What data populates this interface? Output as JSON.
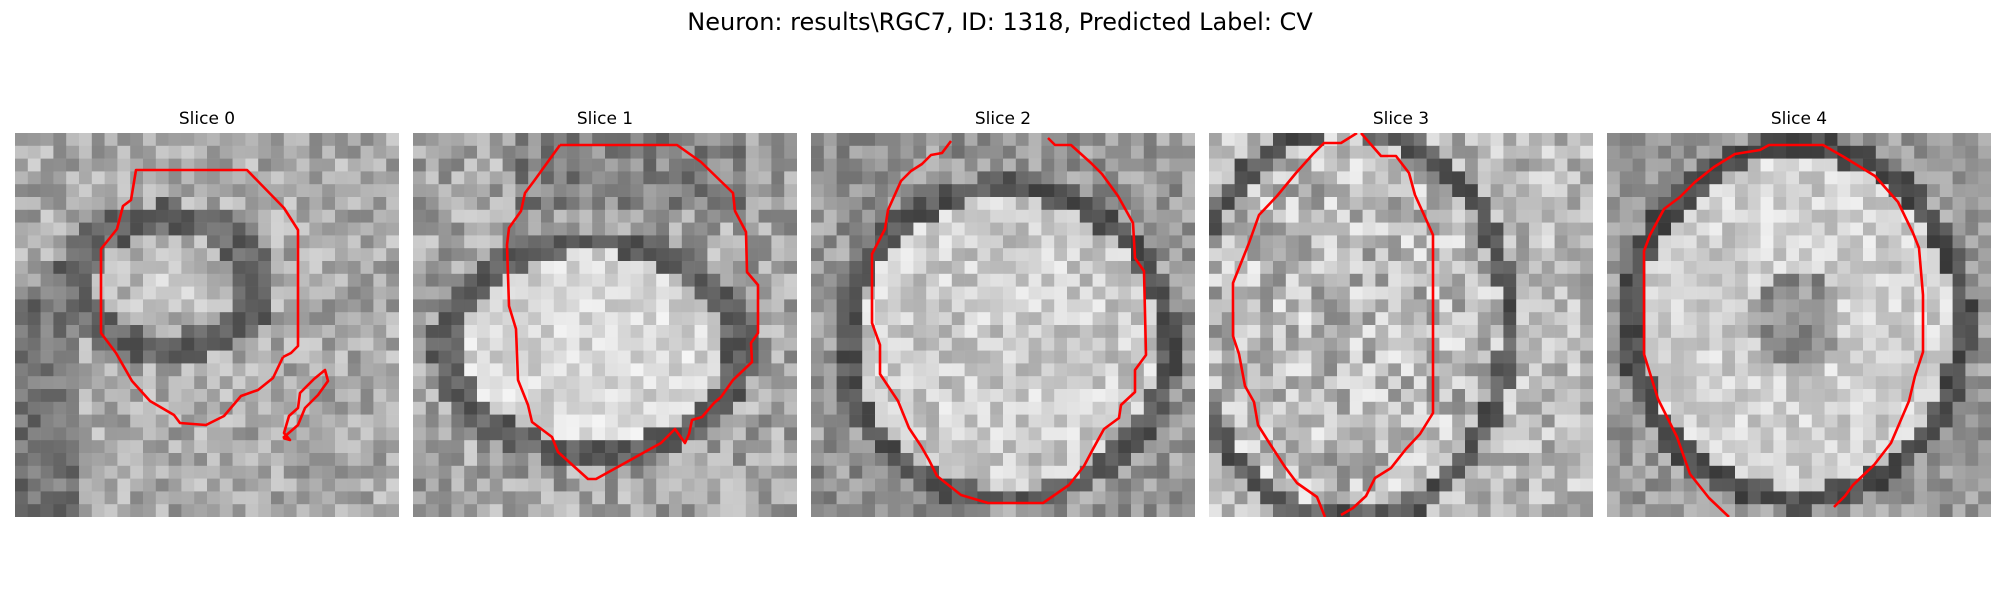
{
  "figure": {
    "suptitle": "Neuron: results\\RGC7, ID: 1318, Predicted Label: CV",
    "contour_color": "#ff0000",
    "colormap": "gray",
    "slices": [
      {
        "title": "Slice 0",
        "seed": 11,
        "scene": "s0"
      },
      {
        "title": "Slice 1",
        "seed": 23,
        "scene": "s1"
      },
      {
        "title": "Slice 2",
        "seed": 37,
        "scene": "s2"
      },
      {
        "title": "Slice 3",
        "seed": 41,
        "scene": "s3"
      },
      {
        "title": "Slice 4",
        "seed": 53,
        "scene": "s4"
      }
    ]
  }
}
